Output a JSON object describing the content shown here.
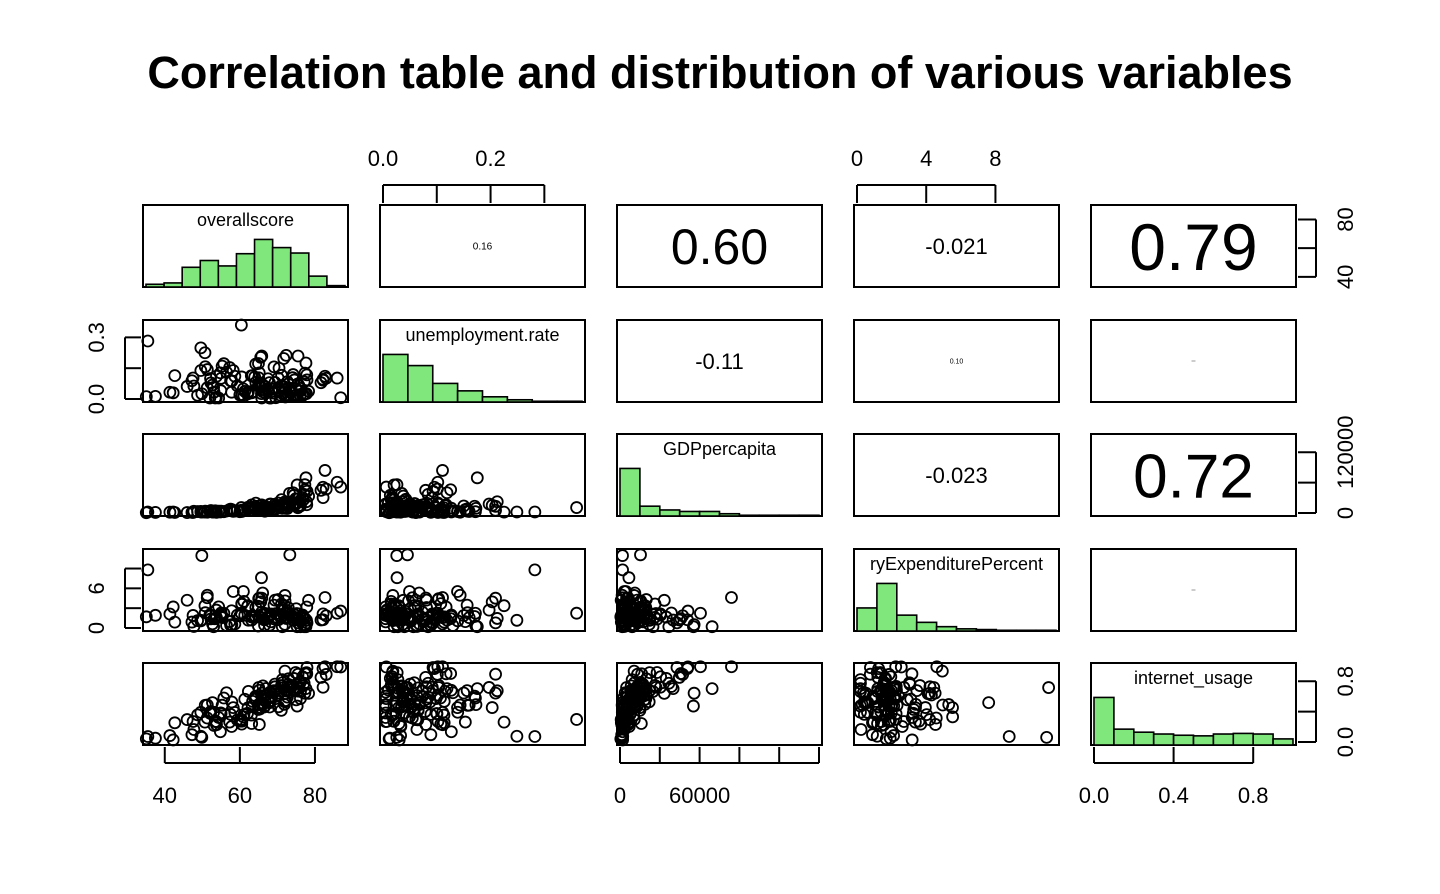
{
  "chart_data": {
    "type": "scatter",
    "title": "Correlation table and distribution of various variables",
    "variables": [
      "overallscore",
      "unemployment.rate",
      "GDPpercapita",
      "ryExpenditurePercent",
      "internet_usage"
    ],
    "correlations": [
      {
        "pair": [
          "overallscore",
          "unemployment.rate"
        ],
        "label": "0.16"
      },
      {
        "pair": [
          "overallscore",
          "GDPpercapita"
        ],
        "label": "0.60"
      },
      {
        "pair": [
          "overallscore",
          "ryExpenditurePercent"
        ],
        "label": "-0.021"
      },
      {
        "pair": [
          "overallscore",
          "internet_usage"
        ],
        "label": "0.79"
      },
      {
        "pair": [
          "unemployment.rate",
          "GDPpercapita"
        ],
        "label": "-0.11"
      },
      {
        "pair": [
          "unemployment.rate",
          "ryExpenditurePercent"
        ],
        "label": "0.10"
      },
      {
        "pair": [
          "unemployment.rate",
          "internet_usage"
        ],
        "label": ""
      },
      {
        "pair": [
          "GDPpercapita",
          "ryExpenditurePercent"
        ],
        "label": "-0.023"
      },
      {
        "pair": [
          "GDPpercapita",
          "internet_usage"
        ],
        "label": "0.72"
      },
      {
        "pair": [
          "ryExpenditurePercent",
          "internet_usage"
        ],
        "label": ""
      }
    ],
    "histograms": {
      "overallscore": {
        "range": [
          35,
          88
        ],
        "counts": [
          4,
          6,
          29,
          39,
          31,
          49,
          70,
          58,
          50,
          16,
          2
        ]
      },
      "unemployment.rate": {
        "range": [
          0,
          0.37
        ],
        "counts": [
          64,
          49,
          25,
          15,
          7,
          3,
          1,
          1
        ]
      },
      "GDPpercapita": {
        "range": [
          0,
          150000
        ],
        "counts": [
          63,
          13,
          8,
          6,
          6,
          3,
          1,
          1,
          1,
          1
        ]
      },
      "ryExpenditurePercent": {
        "range": [
          0,
          11.5
        ],
        "counts": [
          32,
          66,
          22,
          12,
          6,
          3,
          2,
          1,
          1,
          1
        ]
      },
      "internet_usage": {
        "range": [
          0,
          1
        ],
        "counts": [
          78,
          26,
          21,
          18,
          16,
          15,
          18,
          19,
          18,
          10
        ]
      }
    },
    "axes": {
      "top": [
        {
          "variable": "unemployment.rate",
          "ticks": [
            "0.0",
            "0.2"
          ],
          "range": [
            0,
            0.37
          ]
        },
        {
          "variable": "ryExpenditurePercent",
          "ticks": [
            "0",
            "4",
            "8"
          ],
          "range": [
            0,
            11.5
          ]
        }
      ],
      "bottom": [
        {
          "variable": "overallscore",
          "ticks": [
            "40",
            "60",
            "80"
          ],
          "range": [
            35,
            88
          ]
        },
        {
          "variable": "GDPpercapita",
          "ticks": [
            "0",
            "60000"
          ],
          "range": [
            0,
            150000
          ]
        },
        {
          "variable": "internet_usage",
          "ticks": [
            "0.0",
            "0.4",
            "0.8"
          ],
          "range": [
            0,
            1
          ]
        }
      ],
      "left": [
        {
          "variable": "unemployment.rate",
          "ticks": [
            "0.0",
            "0.3"
          ],
          "range": [
            0,
            0.37
          ]
        },
        {
          "variable": "ryExpenditurePercent",
          "ticks": [
            "0",
            "6"
          ],
          "range": [
            0,
            11.5
          ]
        }
      ],
      "right": [
        {
          "variable": "overallscore",
          "ticks": [
            "40",
            "80"
          ],
          "range": [
            35,
            88
          ]
        },
        {
          "variable": "GDPpercapita",
          "ticks": [
            "0",
            "120000"
          ],
          "range": [
            0,
            150000
          ]
        },
        {
          "variable": "internet_usage",
          "ticks": [
            "0.0",
            "0.8"
          ],
          "range": [
            0,
            1
          ]
        }
      ]
    },
    "colors": {
      "histogram_fill": "#80e77c",
      "stroke": "#000000"
    }
  }
}
